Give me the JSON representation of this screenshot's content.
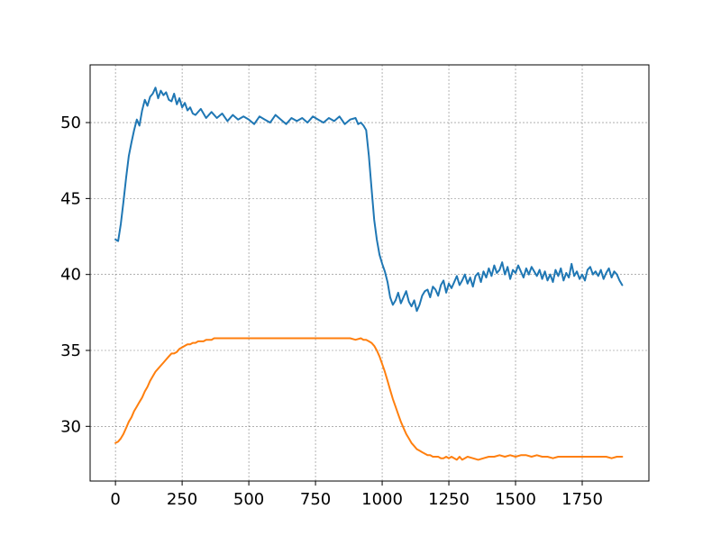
{
  "chart_data": {
    "type": "line",
    "title": "",
    "xlabel": "",
    "ylabel": "",
    "xlim": [
      -95,
      2000
    ],
    "ylim": [
      26.4,
      53.8
    ],
    "grid": true,
    "legend": false,
    "x_ticks": [
      0,
      250,
      500,
      750,
      1000,
      1250,
      1500,
      1750
    ],
    "x_tick_labels": [
      "0",
      "250",
      "500",
      "750",
      "1000",
      "1250",
      "1500",
      "1750"
    ],
    "y_ticks": [
      30,
      35,
      40,
      45,
      50
    ],
    "y_tick_labels": [
      "30",
      "35",
      "40",
      "45",
      "50"
    ],
    "series": [
      {
        "color": "#1f77b4",
        "x": [
          0,
          10,
          20,
          30,
          40,
          50,
          60,
          70,
          80,
          90,
          100,
          110,
          120,
          130,
          140,
          150,
          160,
          170,
          180,
          190,
          200,
          210,
          220,
          230,
          240,
          250,
          260,
          270,
          280,
          290,
          300,
          320,
          340,
          360,
          380,
          400,
          420,
          440,
          460,
          480,
          500,
          520,
          540,
          560,
          580,
          600,
          620,
          640,
          660,
          680,
          700,
          720,
          740,
          760,
          780,
          800,
          820,
          840,
          860,
          880,
          900,
          910,
          920,
          930,
          940,
          950,
          960,
          970,
          980,
          990,
          1000,
          1010,
          1020,
          1030,
          1040,
          1050,
          1060,
          1070,
          1080,
          1090,
          1100,
          1110,
          1120,
          1130,
          1140,
          1150,
          1160,
          1170,
          1180,
          1190,
          1200,
          1210,
          1220,
          1230,
          1240,
          1250,
          1260,
          1270,
          1280,
          1290,
          1300,
          1310,
          1320,
          1330,
          1340,
          1350,
          1360,
          1370,
          1380,
          1390,
          1400,
          1410,
          1420,
          1430,
          1440,
          1450,
          1460,
          1470,
          1480,
          1490,
          1500,
          1510,
          1520,
          1530,
          1540,
          1550,
          1560,
          1570,
          1580,
          1590,
          1600,
          1610,
          1620,
          1630,
          1640,
          1650,
          1660,
          1670,
          1680,
          1690,
          1700,
          1710,
          1720,
          1730,
          1740,
          1750,
          1760,
          1770,
          1780,
          1790,
          1800,
          1810,
          1820,
          1830,
          1840,
          1850,
          1860,
          1870,
          1880,
          1890,
          1900
        ],
        "y": [
          42.3,
          42.2,
          43.3,
          44.8,
          46.4,
          47.8,
          48.7,
          49.5,
          50.2,
          49.8,
          50.8,
          51.5,
          51.1,
          51.7,
          51.9,
          52.3,
          51.6,
          52.1,
          51.8,
          52.0,
          51.5,
          51.4,
          51.9,
          51.2,
          51.6,
          51.0,
          51.3,
          50.8,
          51.0,
          50.6,
          50.5,
          50.9,
          50.3,
          50.7,
          50.3,
          50.6,
          50.1,
          50.5,
          50.2,
          50.4,
          50.2,
          49.9,
          50.4,
          50.2,
          50.0,
          50.5,
          50.2,
          49.9,
          50.3,
          50.1,
          50.3,
          50.0,
          50.4,
          50.2,
          50.0,
          50.3,
          50.1,
          50.4,
          49.9,
          50.2,
          50.3,
          49.9,
          50.0,
          49.8,
          49.5,
          47.8,
          45.7,
          43.6,
          42.3,
          41.3,
          40.7,
          40.2,
          39.5,
          38.5,
          38.0,
          38.3,
          38.8,
          38.1,
          38.5,
          38.9,
          38.2,
          37.9,
          38.3,
          37.6,
          38.0,
          38.6,
          38.9,
          39.0,
          38.5,
          39.2,
          39.0,
          38.6,
          39.3,
          39.6,
          38.8,
          39.4,
          39.1,
          39.5,
          39.9,
          39.3,
          39.6,
          40.0,
          39.4,
          39.8,
          39.2,
          39.9,
          40.1,
          39.5,
          40.2,
          39.8,
          40.4,
          39.9,
          40.6,
          40.1,
          40.3,
          40.8,
          40.0,
          40.5,
          39.7,
          40.3,
          40.1,
          40.6,
          40.2,
          39.8,
          40.4,
          40.0,
          40.5,
          40.2,
          39.9,
          40.3,
          39.7,
          40.2,
          39.6,
          40.0,
          39.5,
          40.3,
          39.9,
          40.4,
          39.6,
          40.1,
          39.8,
          40.7,
          39.9,
          40.2,
          39.7,
          40.0,
          39.6,
          40.3,
          40.5,
          40.0,
          40.2,
          39.9,
          40.3,
          39.7,
          40.1,
          40.4,
          39.8,
          40.2,
          40.0,
          39.6,
          39.3
        ]
      },
      {
        "color": "#ff7f0e",
        "x": [
          0,
          10,
          20,
          30,
          40,
          50,
          60,
          70,
          80,
          90,
          100,
          110,
          120,
          130,
          140,
          150,
          160,
          170,
          180,
          190,
          200,
          210,
          220,
          230,
          240,
          250,
          260,
          270,
          280,
          290,
          300,
          310,
          320,
          330,
          340,
          350,
          360,
          370,
          380,
          390,
          400,
          420,
          440,
          460,
          480,
          500,
          520,
          540,
          560,
          580,
          600,
          620,
          640,
          660,
          680,
          700,
          720,
          740,
          760,
          780,
          800,
          820,
          840,
          860,
          880,
          900,
          920,
          930,
          940,
          950,
          960,
          970,
          980,
          990,
          1000,
          1010,
          1020,
          1030,
          1040,
          1050,
          1060,
          1070,
          1080,
          1090,
          1100,
          1110,
          1120,
          1130,
          1140,
          1150,
          1160,
          1170,
          1180,
          1190,
          1200,
          1210,
          1220,
          1230,
          1240,
          1250,
          1260,
          1270,
          1280,
          1290,
          1300,
          1320,
          1340,
          1360,
          1380,
          1400,
          1420,
          1440,
          1460,
          1480,
          1500,
          1520,
          1540,
          1560,
          1580,
          1600,
          1620,
          1640,
          1660,
          1680,
          1700,
          1720,
          1740,
          1760,
          1780,
          1800,
          1820,
          1840,
          1860,
          1880,
          1900
        ],
        "y": [
          28.9,
          29.0,
          29.2,
          29.5,
          29.9,
          30.3,
          30.6,
          31.0,
          31.3,
          31.6,
          31.9,
          32.3,
          32.6,
          33.0,
          33.3,
          33.6,
          33.8,
          34.0,
          34.2,
          34.4,
          34.6,
          34.8,
          34.8,
          34.9,
          35.1,
          35.2,
          35.3,
          35.4,
          35.4,
          35.5,
          35.5,
          35.6,
          35.6,
          35.6,
          35.7,
          35.7,
          35.7,
          35.8,
          35.8,
          35.8,
          35.8,
          35.8,
          35.8,
          35.8,
          35.8,
          35.8,
          35.8,
          35.8,
          35.8,
          35.8,
          35.8,
          35.8,
          35.8,
          35.8,
          35.8,
          35.8,
          35.8,
          35.8,
          35.8,
          35.8,
          35.8,
          35.8,
          35.8,
          35.8,
          35.8,
          35.7,
          35.8,
          35.7,
          35.7,
          35.6,
          35.5,
          35.3,
          35.0,
          34.6,
          34.1,
          33.6,
          33.0,
          32.4,
          31.8,
          31.3,
          30.8,
          30.3,
          29.9,
          29.5,
          29.2,
          28.9,
          28.7,
          28.5,
          28.4,
          28.3,
          28.2,
          28.1,
          28.1,
          28.0,
          28.0,
          28.0,
          27.9,
          27.9,
          28.0,
          27.9,
          28.0,
          27.9,
          27.8,
          28.0,
          27.8,
          28.0,
          27.9,
          27.8,
          27.9,
          28.0,
          28.0,
          28.1,
          28.0,
          28.1,
          28.0,
          28.1,
          28.1,
          28.0,
          28.1,
          28.0,
          28.0,
          27.9,
          28.0,
          28.0,
          28.0,
          28.0,
          28.0,
          28.0,
          28.0,
          28.0,
          28.0,
          28.0,
          27.9,
          28.0,
          28.0
        ]
      }
    ]
  }
}
